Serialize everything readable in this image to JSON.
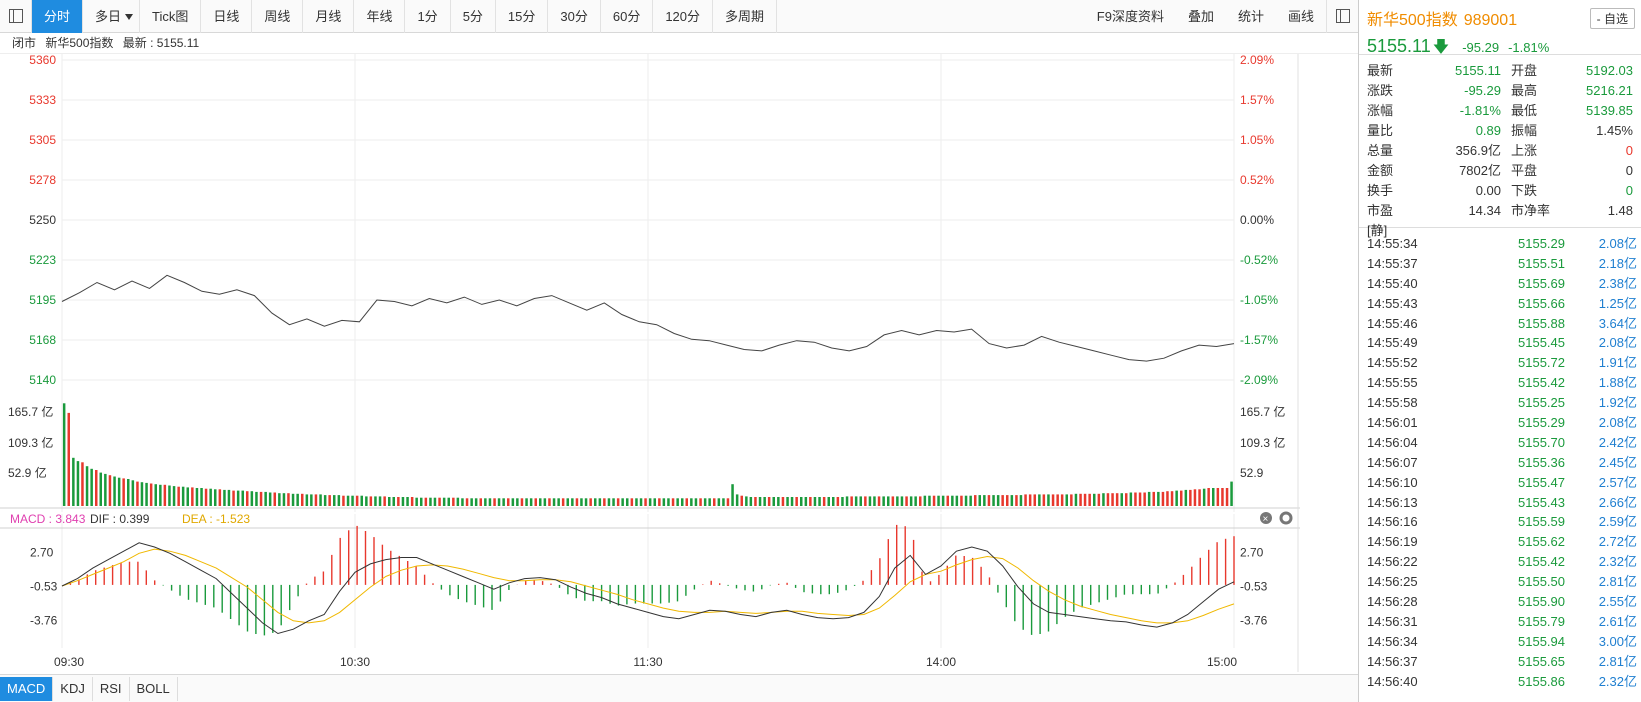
{
  "toolbar": {
    "tabs": [
      "分时",
      "多日",
      "Tick图",
      "日线",
      "周线",
      "月线",
      "年线",
      "1分",
      "5分",
      "15分",
      "30分",
      "60分",
      "120分",
      "多周期"
    ],
    "active_index": 0,
    "right": [
      "F9深度资料",
      "叠加",
      "统计",
      "画线"
    ]
  },
  "infoline": {
    "status": "闭市",
    "name": "新华500指数",
    "latest": "最新 : 5155.11"
  },
  "chart_data": {
    "type": "line",
    "time_labels": [
      "09:30",
      "10:30",
      "11:30",
      "14:00",
      "15:00"
    ],
    "price_axis": {
      "ticks": [
        "5360",
        "5333",
        "5305",
        "5278",
        "5250",
        "5223",
        "5195",
        "5168",
        "5140"
      ],
      "colors": [
        "red",
        "red",
        "red",
        "red",
        "neutral",
        "green",
        "green",
        "green",
        "green"
      ]
    },
    "pct_axis": [
      "2.09%",
      "1.57%",
      "1.05%",
      "0.52%",
      "0.00%",
      "-0.52%",
      "-1.05%",
      "-1.57%",
      "-2.09%"
    ],
    "volume_axis": [
      "165.7 亿",
      "109.3 亿",
      "52.9 亿"
    ],
    "volume_axis_right": [
      "165.7 亿",
      "109.3 亿",
      "52.9"
    ],
    "price_line": [
      5194,
      5200,
      5207,
      5202,
      5208,
      5203,
      5212,
      5207,
      5201,
      5199,
      5202,
      5198,
      5186,
      5178,
      5182,
      5177,
      5181,
      5180,
      5195,
      5194,
      5191,
      5196,
      5193,
      5197,
      5192,
      5195,
      5191,
      5196,
      5198,
      5193,
      5188,
      5193,
      5185,
      5180,
      5178,
      5172,
      5168,
      5167,
      5164,
      5161,
      5160,
      5164,
      5167,
      5166,
      5162,
      5160,
      5163,
      5171,
      5174,
      5171,
      5174,
      5173,
      5175,
      5165,
      5162,
      5164,
      5170,
      5166,
      5163,
      5160,
      5157,
      5154,
      5153,
      5155,
      5160,
      5164,
      5163,
      5165
    ],
    "price_min": 5140,
    "price_max": 5360,
    "macd_header": {
      "macd": "MACD : 3.843",
      "dif": "DIF : 0.399",
      "dea": "DEA : -1.523"
    },
    "macd_axis": [
      "2.70",
      "-0.53",
      "-3.76"
    ],
    "macd_axis_right": [
      "2.70",
      "-0.53",
      "-3.76"
    ],
    "dif": [
      -0.5,
      0.2,
      1.2,
      2.0,
      2.8,
      3.6,
      3.2,
      2.6,
      1.8,
      1.0,
      0.2,
      -1.2,
      -2.6,
      -4.0,
      -5.0,
      -4.6,
      -3.8,
      -3.2,
      -1.0,
      0.8,
      1.6,
      2.0,
      2.2,
      2.2,
      1.6,
      1.0,
      0.4,
      -0.2,
      -0.8,
      -0.2,
      0.2,
      0.3,
      0.1,
      -0.6,
      -1.2,
      -1.6,
      -2.2,
      -2.6,
      -3.0,
      -3.4,
      -3.6,
      -3.2,
      -2.8,
      -2.9,
      -3.2,
      -3.4,
      -3.0,
      -2.8,
      -3.2,
      -3.5,
      -3.6,
      -3.5,
      -3.0,
      -1.5,
      1.2,
      2.4,
      0.6,
      1.4,
      2.8,
      3.2,
      2.8,
      1.4,
      -0.6,
      -2.2,
      -3.0,
      -3.2,
      -3.4,
      -3.6,
      -3.8,
      -3.9,
      -4.2,
      -4.4,
      -4.0,
      -3.2,
      -2.0,
      -0.8,
      -0.1
    ],
    "dea": [
      -0.5,
      0.0,
      0.6,
      1.2,
      1.8,
      2.6,
      3.0,
      2.8,
      2.4,
      1.8,
      1.2,
      0.3,
      -0.6,
      -1.8,
      -3.0,
      -3.8,
      -4.0,
      -3.8,
      -3.0,
      -1.8,
      -0.6,
      0.4,
      1.0,
      1.4,
      1.5,
      1.4,
      1.1,
      0.7,
      0.3,
      0.0,
      0.0,
      0.1,
      0.1,
      -0.1,
      -0.5,
      -0.9,
      -1.3,
      -1.8,
      -2.2,
      -2.6,
      -2.9,
      -3.0,
      -3.0,
      -2.9,
      -3.0,
      -3.1,
      -3.0,
      -2.9,
      -2.9,
      -3.1,
      -3.2,
      -3.3,
      -3.2,
      -2.6,
      -1.4,
      -0.1,
      0.6,
      0.9,
      1.5,
      2.0,
      2.3,
      2.1,
      1.2,
      0.0,
      -1.0,
      -1.8,
      -2.4,
      -2.8,
      -3.2,
      -3.5,
      -3.8,
      -4.0,
      -4.0,
      -3.8,
      -3.3,
      -2.7,
      -2.2
    ],
    "volume_bars": [
      160,
      145,
      75,
      70,
      68,
      62,
      58,
      56,
      52,
      50,
      48,
      46,
      44,
      43,
      42,
      40,
      38,
      37,
      36,
      35,
      34,
      33,
      33,
      32,
      31,
      30,
      30,
      29,
      29,
      28,
      28,
      27,
      27,
      26,
      26,
      25,
      25,
      24,
      24,
      24,
      23,
      23,
      22,
      22,
      22,
      21,
      21,
      20,
      20,
      20,
      19,
      19,
      19,
      18,
      18,
      18,
      18,
      17,
      17,
      17,
      17,
      16,
      16,
      16,
      16,
      16,
      15,
      15,
      15,
      15,
      15,
      14,
      14,
      14,
      14,
      14,
      14,
      13,
      13,
      13,
      13,
      13,
      13,
      13,
      13,
      13,
      13,
      12,
      12,
      12,
      12,
      12,
      12,
      12,
      12,
      12,
      12,
      12,
      12,
      12,
      12,
      12,
      12,
      12,
      12,
      12,
      12,
      12,
      12,
      12,
      12,
      12,
      12,
      12,
      12,
      12,
      12,
      12,
      12,
      12,
      12,
      12,
      12,
      12,
      12,
      12,
      12,
      12,
      12,
      12,
      12,
      12,
      12,
      12,
      12,
      12,
      12,
      12,
      12,
      12,
      12,
      12,
      12,
      12,
      12,
      12,
      34,
      18,
      16,
      15,
      14,
      14,
      14,
      14,
      14,
      14,
      14,
      14,
      14,
      14,
      14,
      14,
      14,
      14,
      14,
      14,
      14,
      14,
      14,
      14,
      14,
      15,
      15,
      15,
      15,
      15,
      15,
      15,
      15,
      15,
      15,
      15,
      15,
      15,
      15,
      15,
      15,
      15,
      16,
      16,
      16,
      16,
      16,
      16,
      16,
      16,
      16,
      16,
      16,
      17,
      17,
      17,
      17,
      17,
      17,
      17,
      17,
      17,
      17,
      17,
      18,
      18,
      18,
      18,
      18,
      18,
      18,
      18,
      18,
      18,
      18,
      19,
      19,
      19,
      19,
      19,
      19,
      20,
      20,
      20,
      20,
      20,
      20,
      21,
      21,
      21,
      21,
      22,
      22,
      22,
      22,
      23,
      23,
      24,
      24,
      25,
      25,
      26,
      26,
      27,
      28,
      28,
      28,
      28,
      28,
      38
    ]
  },
  "bottom_tabs": [
    "MACD",
    "KDJ",
    "RSI",
    "BOLL"
  ],
  "right_panel": {
    "name": "新华500指数",
    "code": "989001",
    "add_label": "- 自选",
    "price": "5155.11",
    "change": "-95.29",
    "change_pct": "-1.81%",
    "quote": [
      {
        "k": "最新",
        "v": "5155.11",
        "vc": "green",
        "k2": "开盘",
        "v2": "5192.03",
        "v2c": "green"
      },
      {
        "k": "涨跌",
        "v": "-95.29",
        "vc": "green",
        "k2": "最高",
        "v2": "5216.21",
        "v2c": "green"
      },
      {
        "k": "涨幅",
        "v": "-1.81%",
        "vc": "green",
        "k2": "最低",
        "v2": "5139.85",
        "v2c": "green"
      },
      {
        "k": "量比",
        "v": "0.89",
        "vc": "green",
        "k2": "振幅",
        "v2": "1.45%",
        "v2c": "black"
      },
      {
        "k": "总量",
        "v": "356.9亿",
        "vc": "black",
        "k2": "上涨",
        "v2": "0",
        "v2c": "red"
      },
      {
        "k": "金额",
        "v": "7802亿",
        "vc": "black",
        "k2": "平盘",
        "v2": "0",
        "v2c": "black"
      },
      {
        "k": "换手",
        "v": "0.00",
        "vc": "black",
        "k2": "下跌",
        "v2": "0",
        "v2c": "green"
      },
      {
        "k": "市盈[静]",
        "v": "14.34",
        "vc": "black",
        "k2": "市净率",
        "v2": "1.48",
        "v2c": "black"
      }
    ],
    "ticks": [
      {
        "t": "14:55:34",
        "p": "5155.29",
        "v": "2.08亿"
      },
      {
        "t": "14:55:37",
        "p": "5155.51",
        "v": "2.18亿"
      },
      {
        "t": "14:55:40",
        "p": "5155.69",
        "v": "2.38亿"
      },
      {
        "t": "14:55:43",
        "p": "5155.66",
        "v": "1.25亿"
      },
      {
        "t": "14:55:46",
        "p": "5155.88",
        "v": "3.64亿"
      },
      {
        "t": "14:55:49",
        "p": "5155.45",
        "v": "2.08亿"
      },
      {
        "t": "14:55:52",
        "p": "5155.72",
        "v": "1.91亿"
      },
      {
        "t": "14:55:55",
        "p": "5155.42",
        "v": "1.88亿"
      },
      {
        "t": "14:55:58",
        "p": "5155.25",
        "v": "1.92亿"
      },
      {
        "t": "14:56:01",
        "p": "5155.29",
        "v": "2.08亿"
      },
      {
        "t": "14:56:04",
        "p": "5155.70",
        "v": "2.42亿"
      },
      {
        "t": "14:56:07",
        "p": "5155.36",
        "v": "2.45亿"
      },
      {
        "t": "14:56:10",
        "p": "5155.47",
        "v": "2.57亿"
      },
      {
        "t": "14:56:13",
        "p": "5155.43",
        "v": "2.66亿"
      },
      {
        "t": "14:56:16",
        "p": "5155.59",
        "v": "2.59亿"
      },
      {
        "t": "14:56:19",
        "p": "5155.62",
        "v": "2.72亿"
      },
      {
        "t": "14:56:22",
        "p": "5155.42",
        "v": "2.32亿"
      },
      {
        "t": "14:56:25",
        "p": "5155.50",
        "v": "2.81亿"
      },
      {
        "t": "14:56:28",
        "p": "5155.90",
        "v": "2.55亿"
      },
      {
        "t": "14:56:31",
        "p": "5155.79",
        "v": "2.61亿"
      },
      {
        "t": "14:56:34",
        "p": "5155.94",
        "v": "3.00亿"
      },
      {
        "t": "14:56:37",
        "p": "5155.65",
        "v": "2.81亿"
      },
      {
        "t": "14:56:40",
        "p": "5155.86",
        "v": "2.32亿"
      }
    ]
  }
}
